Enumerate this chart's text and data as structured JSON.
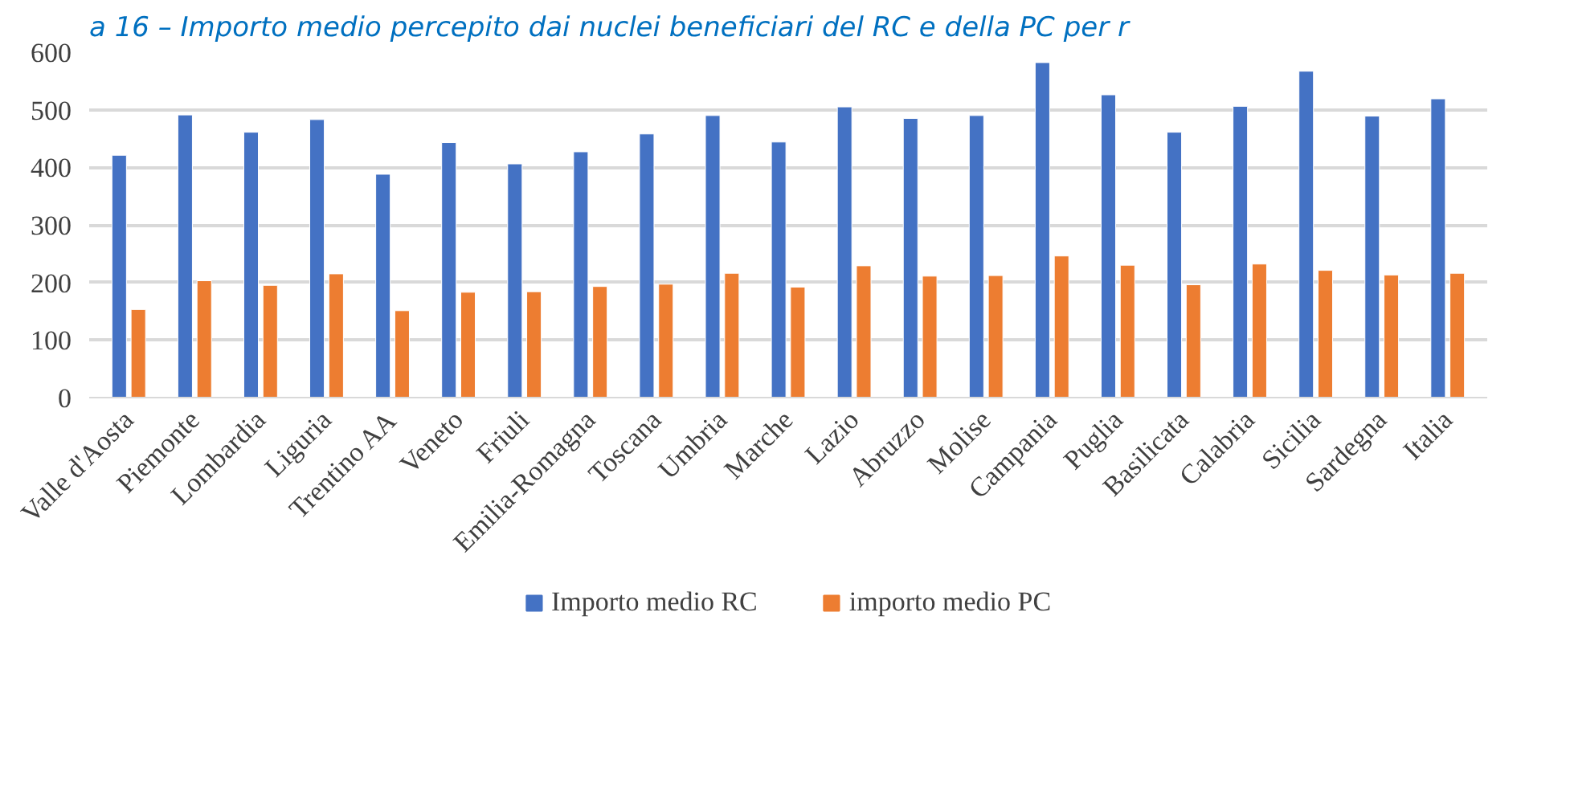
{
  "chart_data": {
    "type": "bar",
    "title": "a 16 – Importo medio percepito dai nuclei beneficiari del RC e della PC per r",
    "categories": [
      "Valle d'Aosta",
      "Piemonte",
      "Lombardia",
      "Liguria",
      "Trentino AA",
      "Veneto",
      "Friuli",
      "Emilia-Romagna",
      "Toscana",
      "Umbria",
      "Marche",
      "Lazio",
      "Abruzzo",
      "Molise",
      "Campania",
      "Puglia",
      "Basilicata",
      "Calabria",
      "Sicilia",
      "Sardegna",
      "Italia"
    ],
    "series": [
      {
        "name": "Importo medio RC",
        "color": "#4472c4",
        "values": [
          421,
          491,
          461,
          483,
          388,
          443,
          406,
          427,
          458,
          490,
          444,
          505,
          485,
          490,
          582,
          526,
          461,
          506,
          567,
          489,
          519
        ]
      },
      {
        "name": "importo medio PC",
        "color": "#ed7d31",
        "values": [
          153,
          203,
          195,
          215,
          151,
          183,
          184,
          193,
          197,
          216,
          192,
          229,
          211,
          212,
          246,
          230,
          196,
          232,
          221,
          213,
          216
        ]
      }
    ],
    "ylim": [
      0,
      600
    ],
    "yticks": [
      0,
      100,
      200,
      300,
      400,
      500,
      600
    ],
    "grid": "y",
    "legend": "bottom"
  }
}
